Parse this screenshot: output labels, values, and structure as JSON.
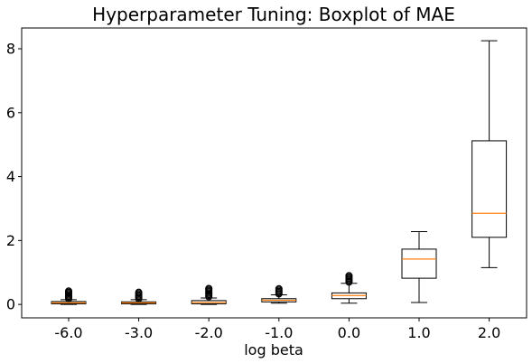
{
  "chart_data": {
    "type": "boxplot",
    "title": "Hyperparameter Tuning: Boxplot of MAE",
    "xlabel": "log beta",
    "ylabel": "",
    "categories": [
      "-6.0",
      "-3.0",
      "-2.0",
      "-1.0",
      "0.0",
      "1.0",
      "2.0"
    ],
    "ylim": [
      -0.42,
      8.65
    ],
    "yticks": [
      0,
      2,
      4,
      6,
      8
    ],
    "ytick_labels": [
      "0",
      "2",
      "4",
      "6",
      "8"
    ],
    "boxes": [
      {
        "category": "-6.0",
        "whisker_low": 0.0,
        "q1": 0.02,
        "median": 0.05,
        "q3": 0.09,
        "whisker_high": 0.15,
        "outliers": [
          0.18,
          0.22,
          0.26,
          0.3,
          0.34,
          0.38,
          0.42
        ]
      },
      {
        "category": "-3.0",
        "whisker_low": 0.0,
        "q1": 0.02,
        "median": 0.05,
        "q3": 0.08,
        "whisker_high": 0.15,
        "outliers": [
          0.18,
          0.22,
          0.26,
          0.3,
          0.34,
          0.38
        ]
      },
      {
        "category": "-2.0",
        "whisker_low": 0.0,
        "q1": 0.02,
        "median": 0.06,
        "q3": 0.12,
        "whisker_high": 0.2,
        "outliers": [
          0.24,
          0.28,
          0.32,
          0.36,
          0.4,
          0.44,
          0.48,
          0.5
        ]
      },
      {
        "category": "-1.0",
        "whisker_low": 0.04,
        "q1": 0.08,
        "median": 0.13,
        "q3": 0.18,
        "whisker_high": 0.3,
        "outliers": [
          0.33,
          0.37,
          0.41,
          0.45,
          0.49
        ]
      },
      {
        "category": "0.0",
        "whisker_low": 0.04,
        "q1": 0.18,
        "median": 0.28,
        "q3": 0.36,
        "whisker_high": 0.66,
        "outliers": [
          0.7,
          0.74,
          0.78,
          0.82,
          0.86,
          0.9
        ]
      },
      {
        "category": "1.0",
        "whisker_low": 0.06,
        "q1": 0.82,
        "median": 1.42,
        "q3": 1.73,
        "whisker_high": 2.28,
        "outliers": []
      },
      {
        "category": "2.0",
        "whisker_low": 1.15,
        "q1": 2.1,
        "median": 2.85,
        "q3": 5.12,
        "whisker_high": 8.25,
        "outliers": []
      }
    ],
    "colors": {
      "box": "#000000",
      "median": "#ff7f0e",
      "outlier": "#000000"
    },
    "grid": false
  }
}
